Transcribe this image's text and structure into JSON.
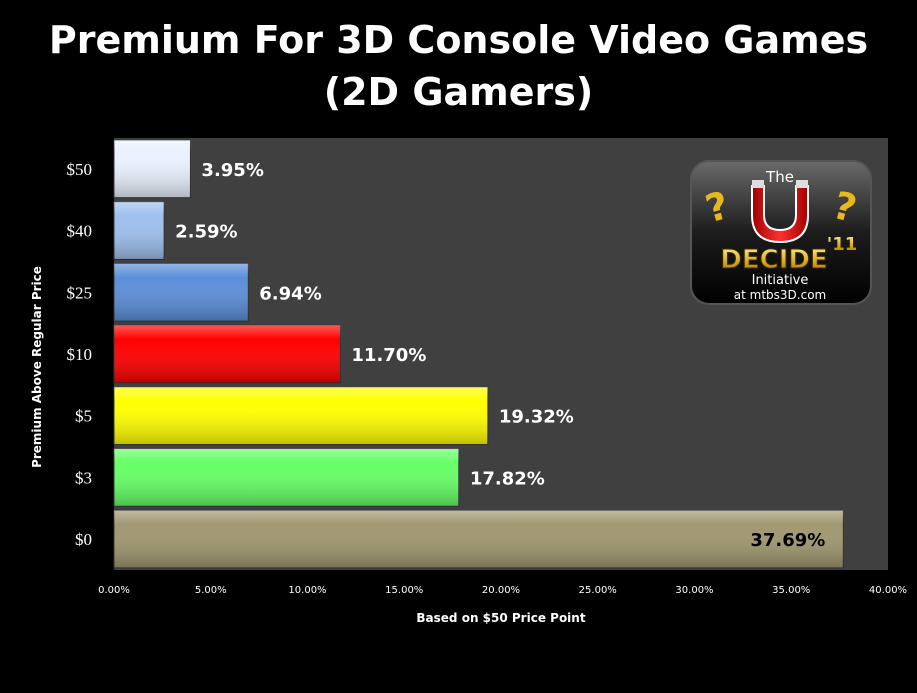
{
  "chart_data": {
    "type": "bar",
    "orientation": "horizontal",
    "title_lines": [
      "Premium For 3D Console Video Games",
      "(2D Gamers)"
    ],
    "xlabel": "Based on $50 Price Point",
    "ylabel": "Premium Above Regular Price",
    "xlim": [
      0,
      40
    ],
    "x_ticks": [
      "0.00%",
      "5.00%",
      "10.00%",
      "15.00%",
      "20.00%",
      "25.00%",
      "30.00%",
      "35.00%",
      "40.00%"
    ],
    "grid": false,
    "categories": [
      "$0",
      "$3",
      "$5",
      "$10",
      "$25",
      "$40",
      "$50"
    ],
    "values": [
      37.69,
      17.82,
      19.32,
      11.7,
      6.94,
      2.59,
      3.95
    ],
    "data_labels": [
      "37.69%",
      "17.82%",
      "19.32%",
      "11.70%",
      "6.94%",
      "2.59%",
      "3.95%"
    ],
    "colors": [
      "#a09870",
      "#66ff66",
      "#ffff00",
      "#ff0000",
      "#5b8fd9",
      "#9ec0ee",
      "#e8f1fc"
    ],
    "label_colors": [
      "#000000",
      "#ffffff",
      "#ffffff",
      "#ffffff",
      "#ffffff",
      "#ffffff",
      "#ffffff"
    ],
    "plot_background": "#404040"
  },
  "logo": {
    "the": "The",
    "decide": "DECIDE",
    "year": "'11",
    "initiative": "Initiative",
    "site": "at mtbs3D.com"
  }
}
